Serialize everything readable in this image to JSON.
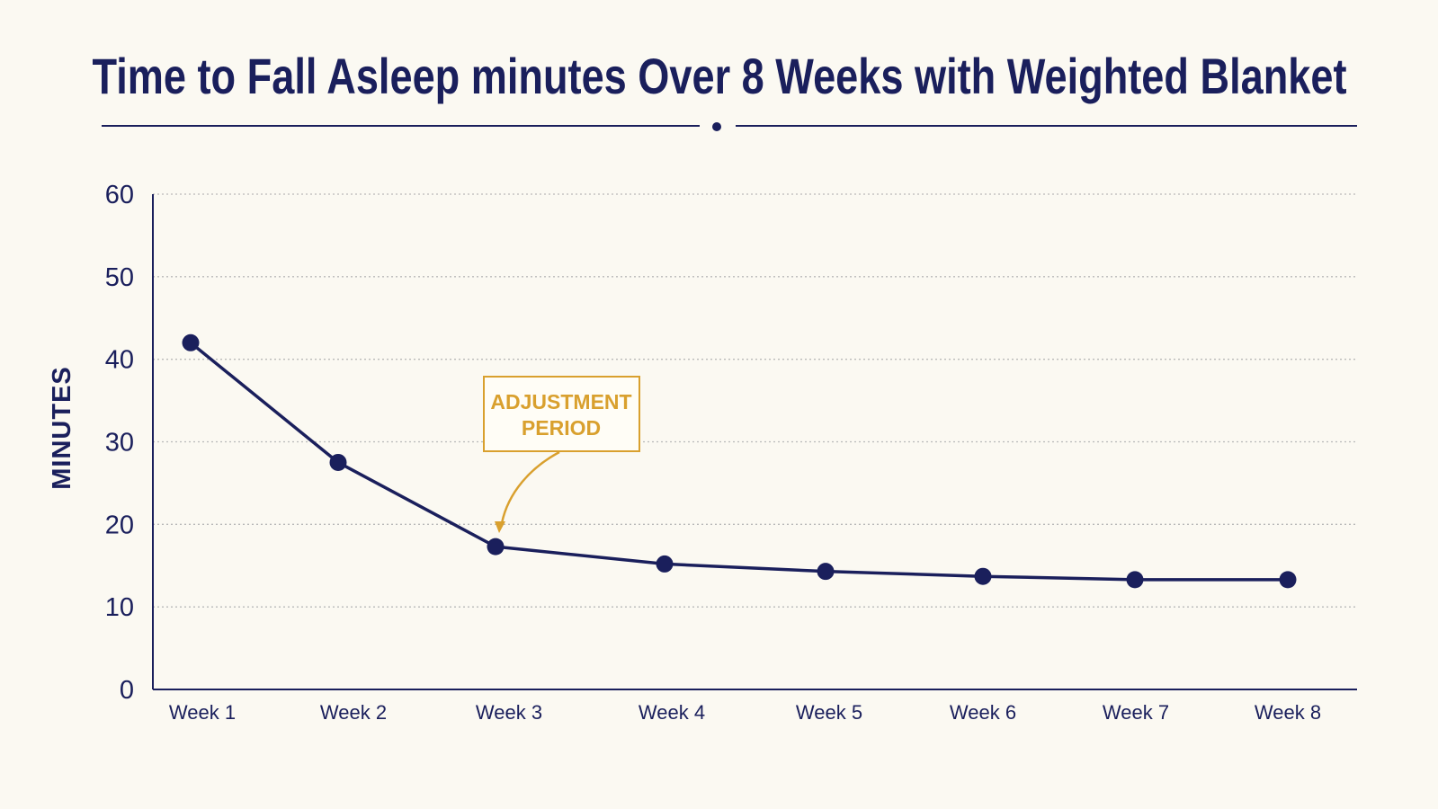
{
  "chart_data": {
    "type": "line",
    "title": "Time to Fall Asleep minutes Over 8 Weeks with Weighted Blanket",
    "xlabel": "",
    "ylabel": "MINUTES",
    "categories": [
      "Week 1",
      "Week 2",
      "Week 3",
      "Week 4",
      "Week 5",
      "Week 6",
      "Week 7",
      "Week 8"
    ],
    "series": [
      {
        "values": [
          42,
          27.5,
          17.3,
          15.2,
          14.3,
          13.7,
          13.3,
          13.3
        ]
      }
    ],
    "ylim": [
      0,
      60
    ],
    "yticks": [
      "0",
      "10",
      "20",
      "30",
      "40",
      "50",
      "60"
    ],
    "grid": "horizontal dotted",
    "annotations": [
      {
        "lines": [
          "ADJUSTMENT",
          "PERIOD"
        ],
        "target_category": "Week 3"
      }
    ],
    "colors": {
      "line": "#1a1f5c",
      "text": "#1a1f5c",
      "grid": "#b9b9b9",
      "annotation": "#d9a02e",
      "background": "#fbf9f2"
    }
  }
}
